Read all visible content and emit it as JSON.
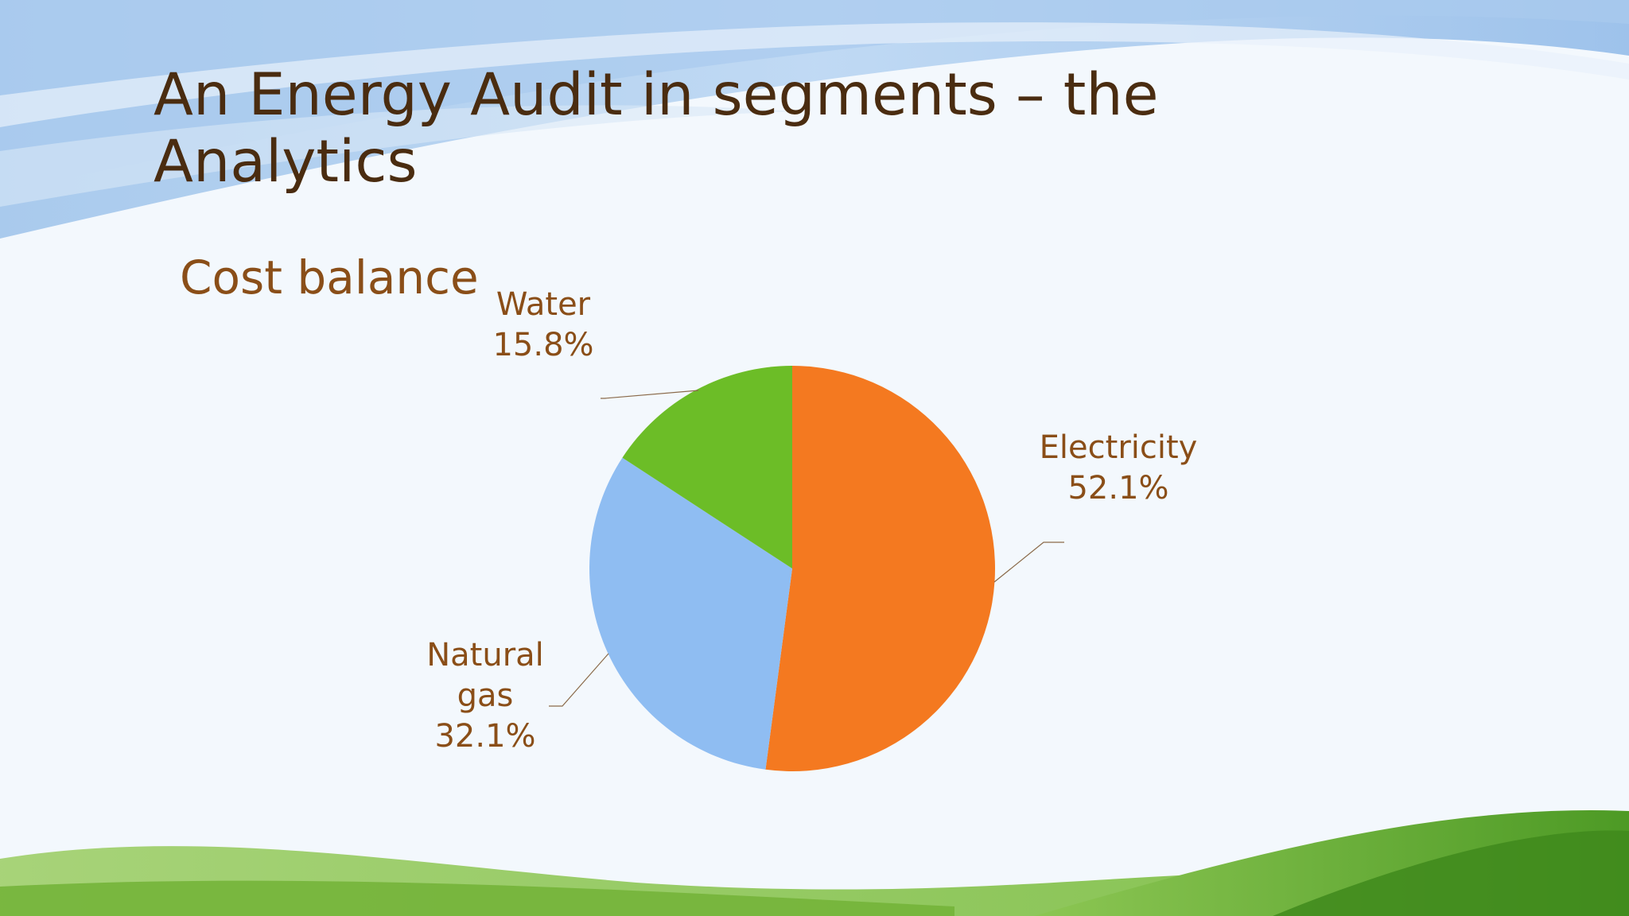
{
  "slide": {
    "title": "An Energy Audit in segments – the Analytics"
  },
  "chart_data": {
    "type": "pie",
    "title": "Cost balance",
    "slices": [
      {
        "name": "Electricity",
        "value": 52.1,
        "label_lines": [
          "Electricity",
          "52.1%"
        ],
        "color": "#f47920"
      },
      {
        "name": "Natural gas",
        "value": 32.1,
        "label_lines": [
          "Natural",
          "gas",
          "32.1%"
        ],
        "color": "#8fbdf2"
      },
      {
        "name": "Water",
        "value": 15.8,
        "label_lines": [
          "Water",
          "15.8%"
        ],
        "color": "#6cbd27"
      }
    ],
    "start_angle_deg": 0,
    "direction": "clockwise",
    "legend": "none",
    "label_color": "#8a4e18"
  }
}
